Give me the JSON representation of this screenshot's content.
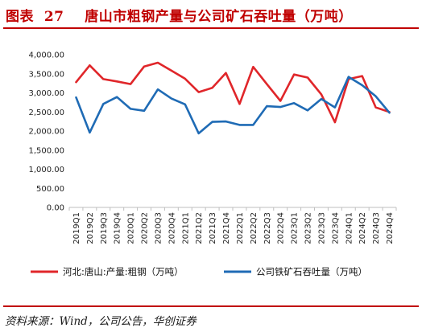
{
  "title": {
    "prefix": "图表",
    "number": "27",
    "text": "唐山市粗钢产量与公司矿石吞吐量（万吨）"
  },
  "source": "资料来源：Wind，公司公告，华创证券",
  "chart_data": {
    "type": "line",
    "title": "",
    "xlabel": "",
    "ylabel": "",
    "ylim": [
      0,
      4000
    ],
    "yticks": [
      0,
      500,
      1000,
      1500,
      2000,
      2500,
      3000,
      3500,
      4000
    ],
    "ytick_labels": [
      "0.00",
      "500.00",
      "1,000.00",
      "1,500.00",
      "2,000.00",
      "2,500.00",
      "3,000.00",
      "3,500.00",
      "4,000.00"
    ],
    "grid": false,
    "legend": "bottom",
    "categories": [
      "2019Q1",
      "2019Q2",
      "2019Q3",
      "2019Q4",
      "2020Q1",
      "2020Q2",
      "2020Q3",
      "2020Q4",
      "2021Q1",
      "2021Q2",
      "2021Q3",
      "2021Q4",
      "2022Q1",
      "2022Q2",
      "2022Q3",
      "2022Q4",
      "2023Q1",
      "2023Q2",
      "2023Q3",
      "2023Q4",
      "2024Q1",
      "2024Q2",
      "2024Q3",
      "2024Q4"
    ],
    "series": [
      {
        "name": "河北:唐山:产量:粗钢（万吨）",
        "color": "#e0262a",
        "values": [
          3280,
          3720,
          3360,
          3300,
          3230,
          3690,
          3790,
          3580,
          3370,
          3020,
          3130,
          3520,
          2710,
          3680,
          3230,
          2790,
          3480,
          3400,
          2960,
          2230,
          3360,
          3440,
          2620,
          2500
        ]
      },
      {
        "name": "公司铁矿石吞吐量（万吨）",
        "color": "#1f6bb5",
        "values": [
          2880,
          1960,
          2710,
          2890,
          2580,
          2530,
          3090,
          2850,
          2700,
          1940,
          2240,
          2250,
          2160,
          2160,
          2650,
          2630,
          2730,
          2540,
          2840,
          2620,
          3420,
          3200,
          2910,
          2480
        ]
      }
    ]
  }
}
